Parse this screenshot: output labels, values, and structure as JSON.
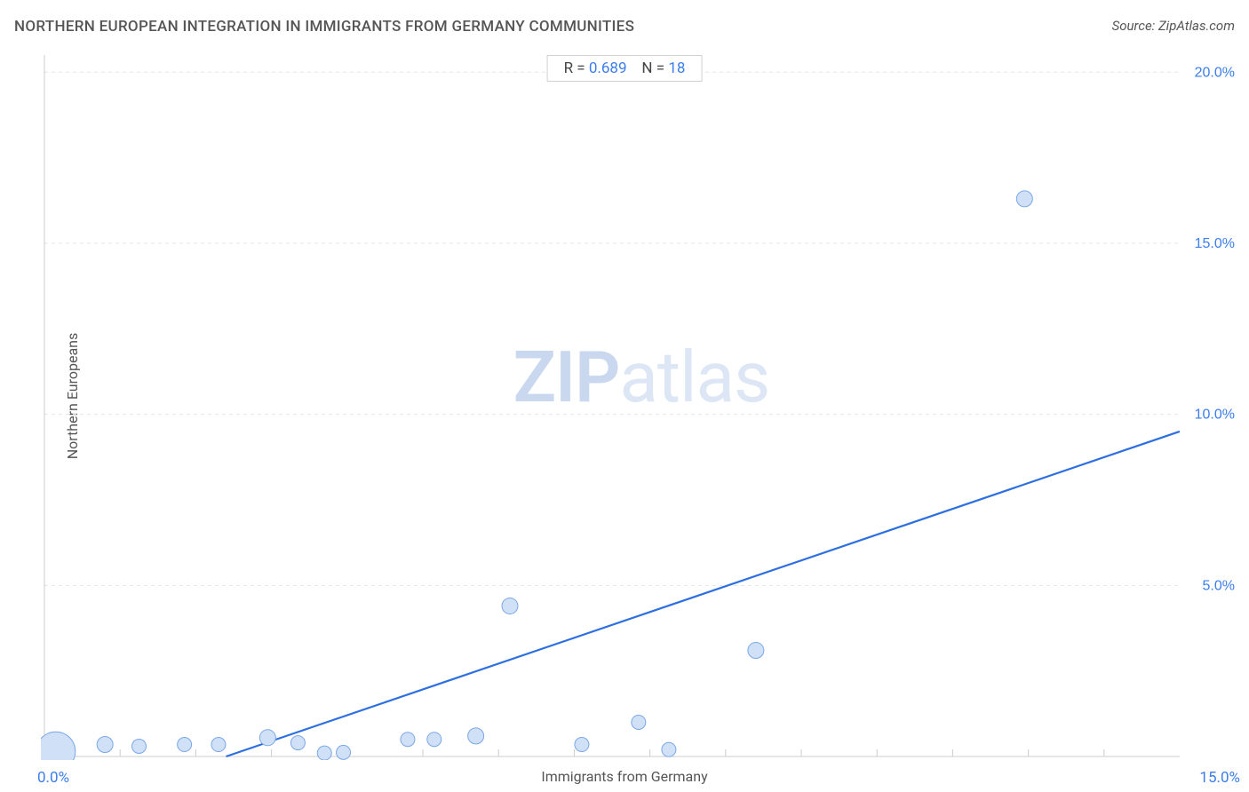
{
  "title": "NORTHERN EUROPEAN INTEGRATION IN IMMIGRANTS FROM GERMANY COMMUNITIES",
  "source": "Source: ZipAtlas.com",
  "stats": {
    "r_label": "R =",
    "r_value": "0.689",
    "n_label": "N =",
    "n_value": "18"
  },
  "watermark": {
    "bold": "ZIP",
    "rest": "atlas"
  },
  "chart": {
    "type": "scatter",
    "x_label": "Immigrants from Germany",
    "y_label": "Northern Europeans",
    "x_origin_label": "0.0%",
    "x_max_label": "15.0%",
    "xlim": [
      0,
      15
    ],
    "ylim": [
      0,
      20.5
    ],
    "y_ticks": [
      {
        "v": 5,
        "label": "5.0%"
      },
      {
        "v": 10,
        "label": "10.0%"
      },
      {
        "v": 15,
        "label": "15.0%"
      },
      {
        "v": 20,
        "label": "20.0%"
      }
    ],
    "x_minor_ticks": [
      1,
      2,
      3,
      4,
      5,
      6,
      7,
      8,
      9,
      10,
      11,
      12,
      13,
      14
    ],
    "grid_color": "#e6e6e6",
    "axis_color": "#cccccc",
    "tick_label_color": "#3b7ded",
    "background_color": "#ffffff",
    "marker_fill": "#cfe0f7",
    "marker_stroke": "#7ba8e6",
    "marker_stroke_width": 1,
    "default_marker_r": 8,
    "trend_line": {
      "color": "#2d6fe0",
      "width": 2.2,
      "x1": 2.4,
      "y1": 0.0,
      "x2": 15.0,
      "y2": 9.5
    },
    "points": [
      {
        "x": 0.15,
        "y": 0.15,
        "r": 22
      },
      {
        "x": 0.8,
        "y": 0.35,
        "r": 9
      },
      {
        "x": 1.25,
        "y": 0.3,
        "r": 8
      },
      {
        "x": 1.85,
        "y": 0.35,
        "r": 8
      },
      {
        "x": 2.3,
        "y": 0.35,
        "r": 8
      },
      {
        "x": 2.95,
        "y": 0.55,
        "r": 9
      },
      {
        "x": 3.35,
        "y": 0.4,
        "r": 8
      },
      {
        "x": 3.7,
        "y": 0.1,
        "r": 8
      },
      {
        "x": 3.95,
        "y": 0.12,
        "r": 8
      },
      {
        "x": 4.8,
        "y": 0.5,
        "r": 8
      },
      {
        "x": 5.15,
        "y": 0.5,
        "r": 8
      },
      {
        "x": 5.7,
        "y": 0.6,
        "r": 9
      },
      {
        "x": 6.15,
        "y": 4.4,
        "r": 9
      },
      {
        "x": 7.1,
        "y": 0.35,
        "r": 8
      },
      {
        "x": 7.85,
        "y": 1.0,
        "r": 8
      },
      {
        "x": 8.25,
        "y": 0.2,
        "r": 8
      },
      {
        "x": 9.4,
        "y": 3.1,
        "r": 9
      },
      {
        "x": 12.95,
        "y": 16.3,
        "r": 9
      }
    ]
  }
}
